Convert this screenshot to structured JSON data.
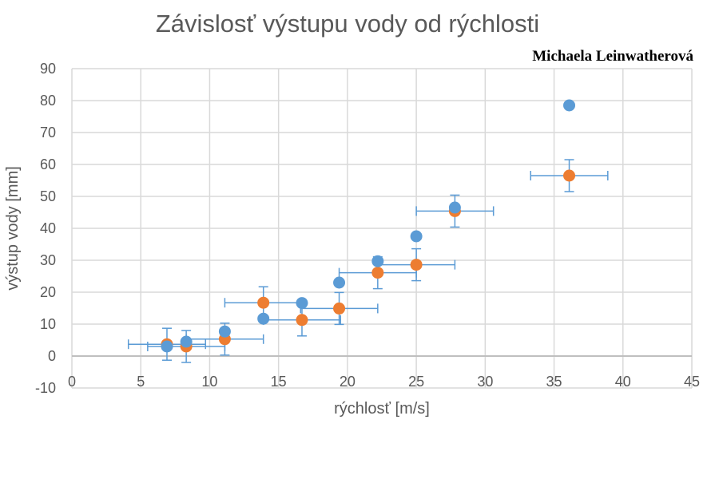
{
  "chart_data": {
    "type": "scatter",
    "title": "Závislosť výstupu vody od rýchlosti",
    "author": "Michaela Leinwatherová",
    "xlabel": "rýchlosť [m/s]",
    "ylabel": "výstup vody [mm]",
    "xlim": [
      0,
      45
    ],
    "ylim": [
      -10,
      90
    ],
    "xticks": [
      0,
      5,
      10,
      15,
      20,
      25,
      30,
      35,
      40,
      45
    ],
    "yticks": [
      -10,
      0,
      10,
      20,
      30,
      40,
      50,
      60,
      70,
      80,
      90
    ],
    "grid": true,
    "series": [
      {
        "name": "blue",
        "color": "#5b9bd5",
        "x": [
          6.9,
          8.3,
          11.1,
          13.9,
          16.7,
          19.4,
          22.2,
          25.0,
          27.8,
          36.1
        ],
        "y": [
          3.0,
          4.5,
          7.7,
          11.7,
          16.6,
          23.0,
          29.7,
          37.5,
          46.5,
          78.5
        ]
      },
      {
        "name": "orange",
        "color": "#ed7d31",
        "x": [
          6.9,
          8.3,
          11.1,
          13.9,
          16.7,
          19.4,
          22.2,
          25.0,
          27.8,
          36.1
        ],
        "y": [
          3.7,
          3.0,
          5.3,
          16.7,
          11.3,
          14.9,
          26.1,
          28.6,
          45.4,
          56.5
        ],
        "xerr": 2.8,
        "yerr": 5
      }
    ]
  }
}
